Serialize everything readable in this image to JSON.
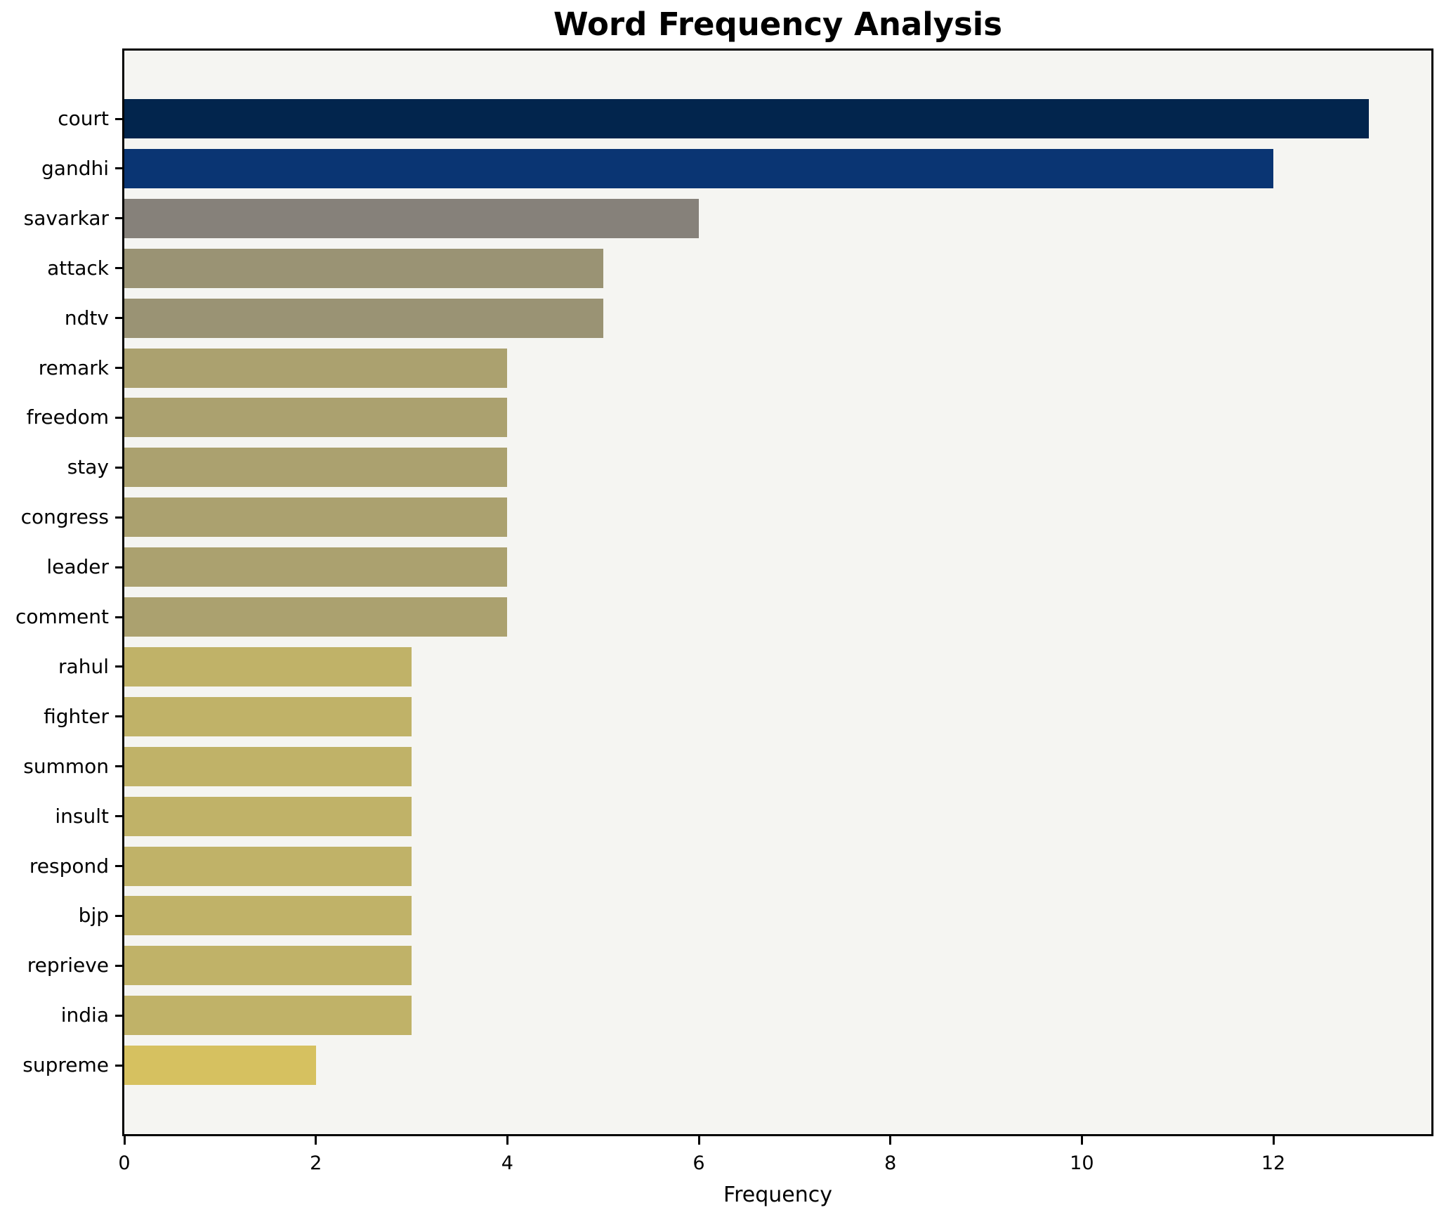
{
  "title": "Word Frequency Analysis",
  "x_axis_label": "Frequency",
  "chart_data": {
    "type": "bar",
    "orientation": "horizontal",
    "title": "Word Frequency Analysis",
    "xlabel": "Frequency",
    "ylabel": "",
    "xlim": [
      0,
      13.65
    ],
    "xticks": [
      0,
      2,
      4,
      6,
      8,
      10,
      12
    ],
    "grid": false,
    "legend": false,
    "plot_background": "#f5f5f2",
    "figure_background": "#ffffff",
    "categories": [
      "court",
      "gandhi",
      "savarkar",
      "attack",
      "ndtv",
      "remark",
      "freedom",
      "stay",
      "congress",
      "leader",
      "comment",
      "rahul",
      "fighter",
      "summon",
      "insult",
      "respond",
      "bjp",
      "reprieve",
      "india",
      "supreme"
    ],
    "values": [
      13,
      12,
      6,
      5,
      5,
      4,
      4,
      4,
      4,
      4,
      4,
      3,
      3,
      3,
      3,
      3,
      3,
      3,
      3,
      2
    ],
    "bar_colors": [
      "#02254d",
      "#0a3573",
      "#86817a",
      "#9a9374",
      "#9a9374",
      "#aba16f",
      "#aba16f",
      "#aba16f",
      "#aba16f",
      "#aba16f",
      "#aba16f",
      "#c0b268",
      "#c0b268",
      "#c0b268",
      "#c0b268",
      "#c0b268",
      "#c0b268",
      "#c0b268",
      "#c0b268",
      "#d6c160"
    ]
  }
}
